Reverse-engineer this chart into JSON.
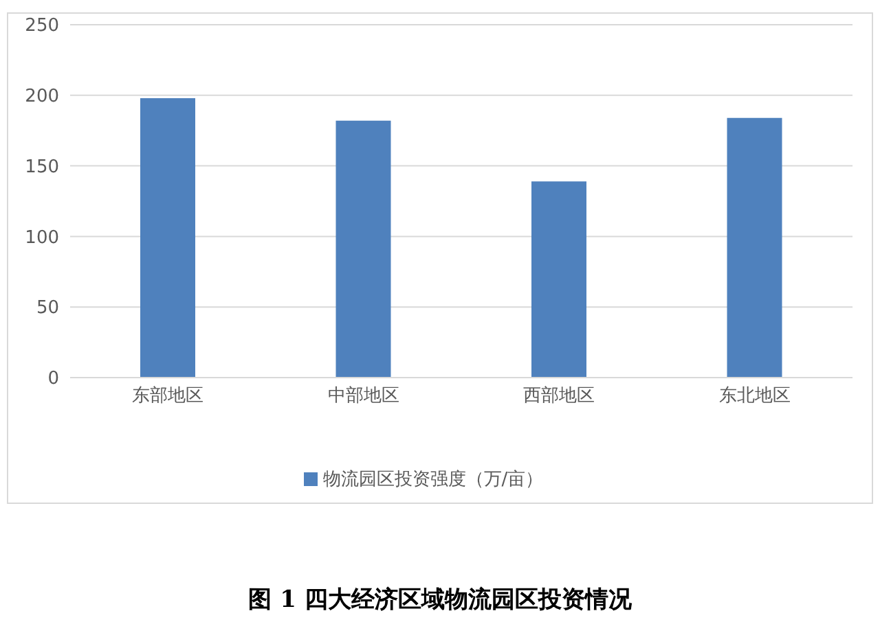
{
  "chart_data": {
    "type": "bar",
    "title": "图 1  四大经济区域物流园区投资情况",
    "categories": [
      "东部地区",
      "中部地区",
      "西部地区",
      "东北地区"
    ],
    "series": [
      {
        "name": "物流园区投资强度（万/亩）",
        "color": "#4f81bd",
        "values": [
          198,
          182,
          139,
          184
        ]
      }
    ],
    "ylim": [
      0,
      250
    ],
    "yticks": [
      0,
      50,
      100,
      150,
      200,
      250
    ],
    "grid": "y",
    "legend": "bottom"
  }
}
